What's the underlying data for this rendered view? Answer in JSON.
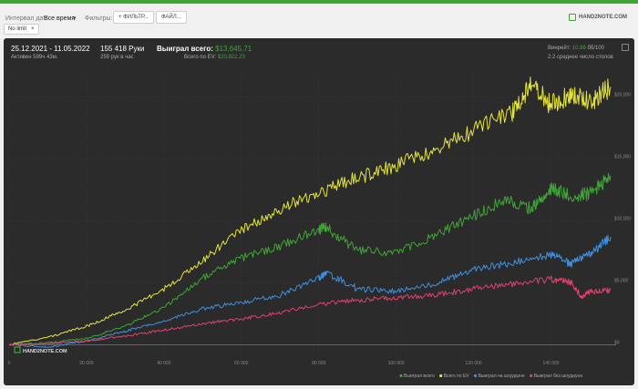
{
  "filters": {
    "date_label": "Интервал дат:",
    "date_value": "Все время",
    "filters_label": "Фильтры:",
    "btn_filters": "+ ФИЛЬТР...",
    "btn_files": "ФАЙЛ...",
    "chip": "No limit",
    "chip_close": "×",
    "brand": "HAND2NOTE.COM"
  },
  "summary": {
    "dates": "25.12.2021 - 11.05.2022",
    "active": "Активен 599ч 43м.",
    "hands": "155 418 Руки",
    "hands_per_hour": "259 рук в час",
    "won_label": "Выиграл всего:",
    "won_value": "$13,645.71",
    "ev_label": "Всего по EV:",
    "ev_value": "$20,822.23",
    "winrate_label": "Винрейт:",
    "winrate_value": "10.86",
    "winrate_unit": "бб/100",
    "tables": "2.2 среднее число столов"
  },
  "watermark": "HAND2NOTE.COM",
  "colors": {
    "green": "#3fa536",
    "yellow": "#e4e43a",
    "blue": "#3e8fe0",
    "pink": "#e0406e"
  },
  "chart_data": {
    "type": "line",
    "x_ticks": [
      "0",
      "20 000",
      "40 000",
      "60 000",
      "80 000",
      "100 000",
      "120 000",
      "140 000"
    ],
    "y_ticks": [
      "$0",
      "$5,000",
      "$10,000",
      "$15,000",
      "$20,000"
    ],
    "xlim": [
      0,
      155418
    ],
    "ylim": [
      -1000,
      21800
    ],
    "grid": true,
    "legend": "bottom-right",
    "series": [
      {
        "name": "Выиграл всего",
        "color": "#3fa536",
        "x": [
          0,
          10000,
          20000,
          30000,
          40000,
          50000,
          60000,
          70000,
          80000,
          82000,
          90000,
          100000,
          110000,
          120000,
          128000,
          135000,
          140000,
          145000,
          150000,
          155418
        ],
        "y": [
          0,
          150,
          500,
          1500,
          3000,
          5400,
          7000,
          8000,
          9300,
          9500,
          7600,
          7400,
          8800,
          10400,
          11700,
          11000,
          12600,
          12000,
          12200,
          13645
        ]
      },
      {
        "name": "Всего по EV",
        "color": "#e4e43a",
        "x": [
          0,
          10000,
          20000,
          30000,
          40000,
          50000,
          60000,
          70000,
          80000,
          90000,
          100000,
          110000,
          120000,
          130000,
          135000,
          140000,
          145000,
          150000,
          155418
        ],
        "y": [
          0,
          600,
          1500,
          2800,
          4500,
          6800,
          9300,
          11000,
          12300,
          13500,
          14500,
          15600,
          17300,
          18800,
          21000,
          19400,
          20100,
          19600,
          20822
        ]
      },
      {
        "name": "Выиграл на шоудауне",
        "color": "#3e8fe0",
        "x": [
          0,
          10000,
          20000,
          30000,
          40000,
          50000,
          60000,
          70000,
          80000,
          82000,
          90000,
          100000,
          110000,
          120000,
          130000,
          140000,
          145000,
          150000,
          155418
        ],
        "y": [
          0,
          -200,
          300,
          1100,
          1900,
          2900,
          3400,
          4000,
          5400,
          5800,
          4500,
          4300,
          4900,
          6100,
          6600,
          7300,
          6500,
          7300,
          8700
        ]
      },
      {
        "name": "Выиграл без шоудауна",
        "color": "#e0406e",
        "x": [
          0,
          10000,
          20000,
          30000,
          40000,
          50000,
          60000,
          70000,
          80000,
          90000,
          100000,
          110000,
          120000,
          130000,
          140000,
          145000,
          148000,
          150000,
          155418
        ],
        "y": [
          0,
          100,
          300,
          700,
          1200,
          1700,
          2100,
          2600,
          3300,
          3600,
          3800,
          4000,
          4500,
          4900,
          5300,
          5100,
          3800,
          4300,
          4400
        ]
      }
    ]
  }
}
